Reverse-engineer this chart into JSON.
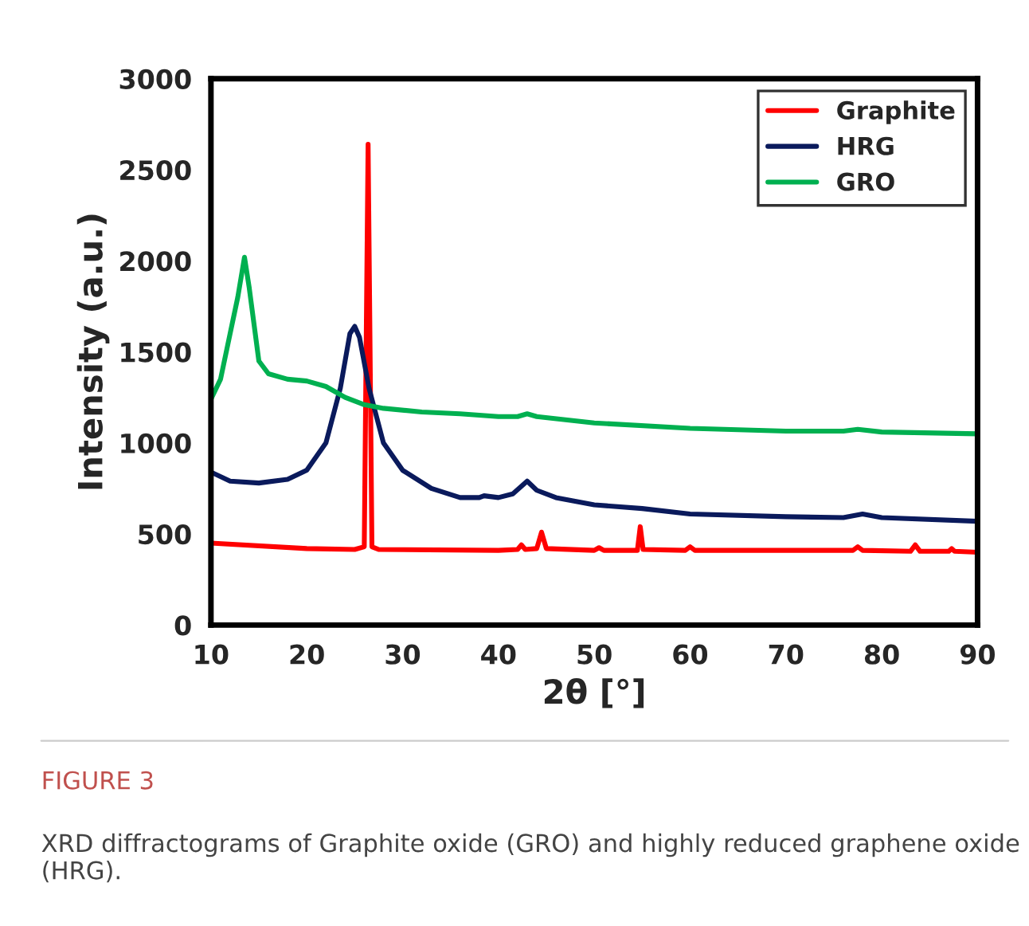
{
  "chart_data": {
    "type": "line",
    "xlabel": "2θ [°]",
    "ylabel": "Intensity (a.u.)",
    "xlim": [
      10,
      90
    ],
    "xticks": [
      10,
      20,
      30,
      40,
      50,
      60,
      70,
      80,
      90
    ],
    "ylim": [
      0,
      3000
    ],
    "yticks": [
      0,
      500,
      1000,
      1500,
      2000,
      2500,
      3000
    ],
    "grid": false,
    "legend": "top right",
    "marker": "none",
    "line_style": "solid",
    "series": [
      {
        "name": "Graphite",
        "color": "#ff0000",
        "x": [
          10,
          20,
          25,
          26,
          26.4,
          26.8,
          27.5,
          40,
          42,
          42.4,
          42.8,
          44,
          44.5,
          45,
          50,
          50.5,
          51,
          54.5,
          54.8,
          55.1,
          59.5,
          60,
          60.5,
          77,
          77.5,
          78,
          83,
          83.5,
          84,
          87,
          87.3,
          87.6,
          90
        ],
        "values": [
          450,
          420,
          415,
          430,
          2640,
          430,
          415,
          410,
          415,
          440,
          415,
          420,
          510,
          420,
          410,
          425,
          410,
          410,
          540,
          415,
          410,
          430,
          410,
          410,
          430,
          410,
          405,
          440,
          405,
          405,
          420,
          405,
          400
        ]
      },
      {
        "name": "HRG",
        "color": "#0a1a5c",
        "x": [
          10,
          12,
          15,
          18,
          20,
          22,
          23.5,
          24.5,
          25,
          25.5,
          26.5,
          28,
          30,
          33,
          36,
          38,
          38.5,
          40,
          41.5,
          43,
          44,
          46,
          50,
          55,
          60,
          70,
          76,
          78,
          80,
          90
        ],
        "values": [
          840,
          790,
          780,
          800,
          850,
          1000,
          1300,
          1600,
          1640,
          1580,
          1300,
          1000,
          850,
          750,
          700,
          700,
          710,
          700,
          720,
          790,
          740,
          700,
          660,
          640,
          610,
          595,
          590,
          610,
          590,
          570
        ]
      },
      {
        "name": "GRO",
        "color": "#00b050",
        "x": [
          10,
          11,
          12,
          12.8,
          13.5,
          14,
          15,
          16,
          18,
          20,
          22,
          24,
          26,
          28,
          32,
          36,
          40,
          42,
          43,
          44,
          50,
          60,
          70,
          76,
          77.5,
          80,
          90
        ],
        "values": [
          1240,
          1350,
          1600,
          1800,
          2020,
          1850,
          1450,
          1380,
          1350,
          1340,
          1310,
          1250,
          1210,
          1190,
          1170,
          1160,
          1145,
          1145,
          1160,
          1145,
          1110,
          1080,
          1065,
          1065,
          1075,
          1060,
          1050
        ]
      }
    ],
    "annotations": [
      "FIGURE 3",
      "XRD diffractograms of Graphite oxide (GRO) and highly reduced graphene oxide (HRG)."
    ]
  }
}
